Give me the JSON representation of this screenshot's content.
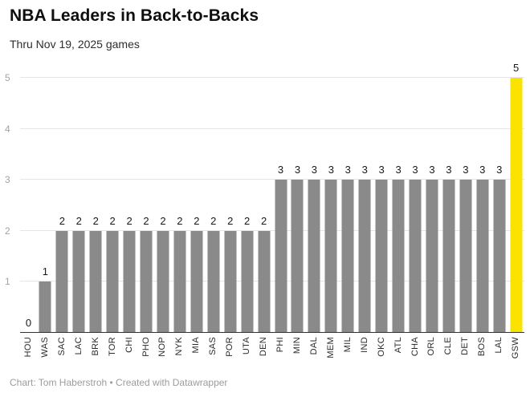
{
  "header": {
    "title": "NBA Leaders in Back-to-Backs",
    "subtitle": "Thru Nov 19, 2025 games"
  },
  "footer": {
    "byline": "Chart: Tom Haberstroh • Created with Datawrapper"
  },
  "colors": {
    "bar_gray": "#8a8a8a",
    "highlight_yellow": "#fbe300",
    "gridline": "#e5e5e5",
    "axis_line": "#333333",
    "tick_label": "#a3a3a3"
  },
  "chart_data": {
    "type": "bar",
    "title": "NBA Leaders in Back-to-Backs",
    "subtitle": "Thru Nov 19, 2025 games",
    "categories": [
      "HOU",
      "WAS",
      "SAC",
      "LAC",
      "BRK",
      "TOR",
      "CHI",
      "PHO",
      "NOP",
      "NYK",
      "MIA",
      "SAS",
      "POR",
      "UTA",
      "DEN",
      "PHI",
      "MIN",
      "DAL",
      "MEM",
      "MIL",
      "IND",
      "OKC",
      "ATL",
      "CHA",
      "ORL",
      "CLE",
      "DET",
      "BOS",
      "LAL",
      "GSW"
    ],
    "values": [
      0,
      1,
      2,
      2,
      2,
      2,
      2,
      2,
      2,
      2,
      2,
      2,
      2,
      2,
      2,
      3,
      3,
      3,
      3,
      3,
      3,
      3,
      3,
      3,
      3,
      3,
      3,
      3,
      3,
      5
    ],
    "value_labels": true,
    "xlabel": "",
    "ylabel": "",
    "ylim": [
      0,
      5
    ],
    "yticks": [
      1,
      2,
      3,
      4,
      5
    ],
    "grid": "horizontal",
    "legend": "none",
    "bar_color": "#8a8a8a",
    "highlight": {
      "category": "GSW",
      "color": "#fbe300"
    },
    "x_tick_rotation": "vertical"
  }
}
